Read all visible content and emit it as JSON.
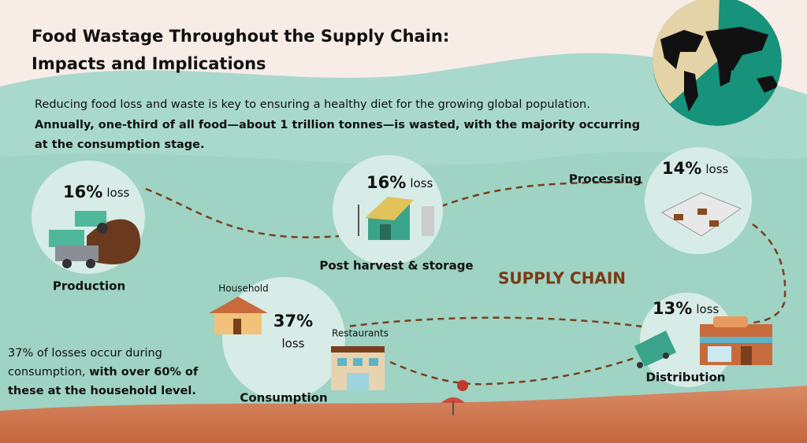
{
  "header": {
    "title_line1": "Food Wastage Throughout the Supply Chain:",
    "title_line2": "Impacts and Implications"
  },
  "intro": {
    "line1": "Reducing food loss and waste is key to ensuring a healthy diet for the growing global population.",
    "line2": "Annually, one-third of all food—about 1 trillion tonnes—is wasted, with the majority occurring",
    "line3": "at the consumption stage."
  },
  "center_label": "SUPPLY CHAIN",
  "stages": [
    {
      "name": "Production",
      "loss": "16%",
      "loss_word": "loss"
    },
    {
      "name": "Post harvest  & storage",
      "loss": "16%",
      "loss_word": "loss"
    },
    {
      "name": "Processing",
      "loss": "14%",
      "loss_word": "loss"
    },
    {
      "name": "Distribution",
      "loss": "13%",
      "loss_word": "loss"
    },
    {
      "name": "Consumption",
      "loss": "37%",
      "loss_word": "loss"
    }
  ],
  "consumption": {
    "household": "Household",
    "restaurants": "Restaurants"
  },
  "note": {
    "line1": "37% of losses occur during",
    "line2_regular": "consumption,",
    "line2_bold": "with over 60% of",
    "line3": "these at the household level."
  }
}
